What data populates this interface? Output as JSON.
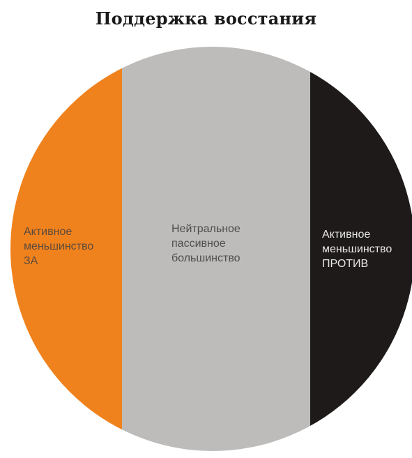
{
  "title": "Поддержка восстания",
  "colors": {
    "left": "#f0821e",
    "middle": "#bdbcba",
    "right": "#1e1a1a"
  },
  "segments": [
    {
      "id": "left",
      "label": "Активное\nменьшинство\nЗА"
    },
    {
      "id": "middle",
      "label": "Нейтральное\nпассивное\nбольшинство"
    },
    {
      "id": "right",
      "label": "Активное\nменьшинство\nПРОТИВ"
    }
  ]
}
